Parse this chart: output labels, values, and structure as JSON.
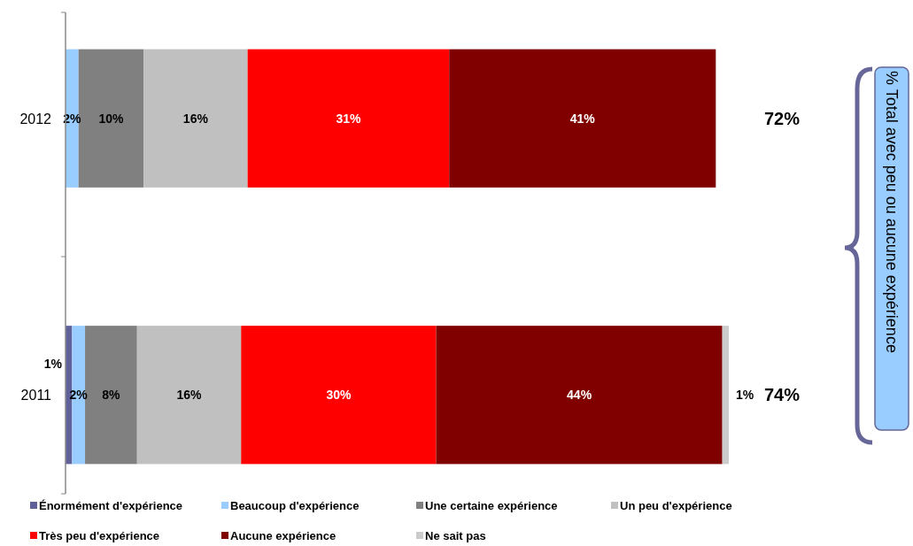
{
  "chart_data": {
    "type": "bar",
    "orientation": "horizontal",
    "stacked": true,
    "categories": [
      "2012",
      "2011"
    ],
    "series": [
      {
        "name": "Énormément d'expérience",
        "color": "#60609a",
        "values": [
          0,
          1
        ],
        "value_labels": [
          null,
          "1%"
        ]
      },
      {
        "name": "Beaucoup d'expérience",
        "color": "#99ccff",
        "values": [
          2,
          2
        ],
        "value_labels": [
          "2%",
          "2%"
        ]
      },
      {
        "name": "Une certaine expérience",
        "color": "#808080",
        "values": [
          10,
          8
        ],
        "value_labels": [
          "10%",
          "8%"
        ]
      },
      {
        "name": "Un peu d'expérience",
        "color": "#c0c0c0",
        "values": [
          16,
          16
        ],
        "value_labels": [
          "16%",
          "16%"
        ]
      },
      {
        "name": "Très peu d'expérience",
        "color": "#ff0000",
        "values": [
          31,
          30
        ],
        "value_labels": [
          "31%",
          "30%"
        ]
      },
      {
        "name": "Aucune expérience",
        "color": "#800000",
        "values": [
          41,
          44
        ],
        "value_labels": [
          "41%",
          "44%"
        ]
      },
      {
        "name": "Ne sait pas",
        "color": "#cccccc",
        "values": [
          0,
          1
        ],
        "value_labels": [
          null,
          "1%"
        ]
      }
    ],
    "tick_labels": "y",
    "legend": "bottom",
    "annotations": [
      "72%",
      "74%",
      "% Total avec peu ou aucune expérience"
    ]
  }
}
